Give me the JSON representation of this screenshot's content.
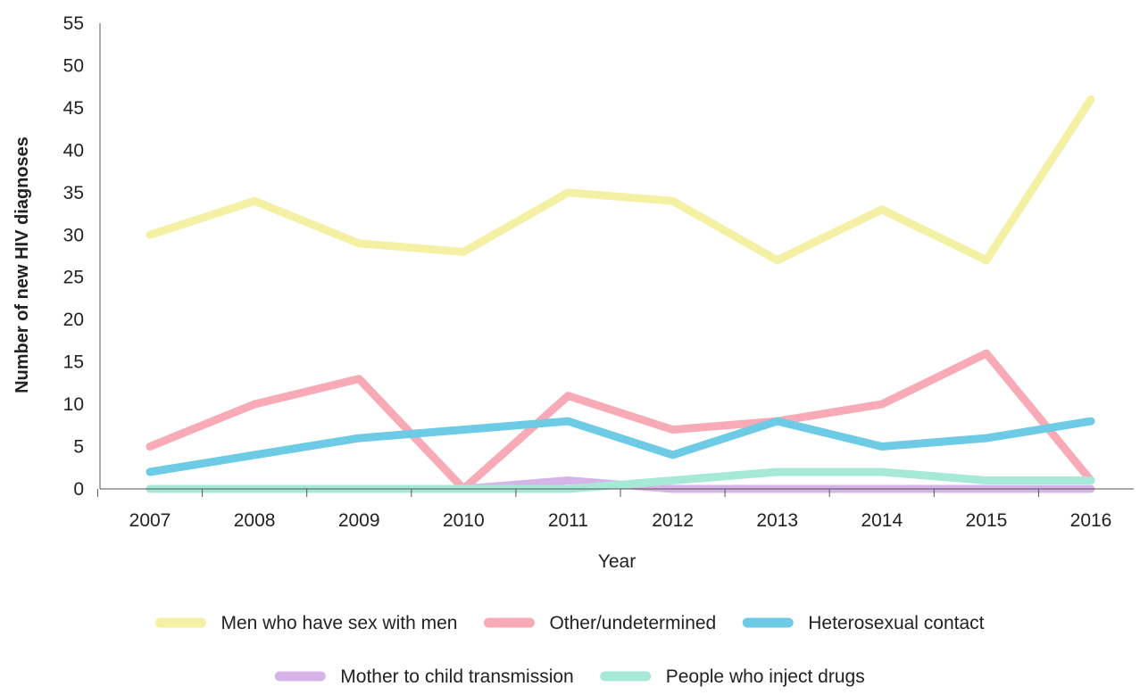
{
  "chart_data": {
    "type": "line",
    "xlabel": "Year",
    "ylabel": "Number of new HIV diagnoses",
    "ylim": [
      0,
      55
    ],
    "yticks": [
      0,
      5,
      10,
      15,
      20,
      25,
      30,
      35,
      40,
      45,
      50,
      55
    ],
    "x": [
      "2007",
      "2008",
      "2009",
      "2010",
      "2011",
      "2012",
      "2013",
      "2014",
      "2015",
      "2016"
    ],
    "grid": false,
    "legend_position": "bottom",
    "series": [
      {
        "name": "Men who have sex with men",
        "color": "#f4f0a4",
        "values": [
          30,
          34,
          29,
          28,
          35,
          34,
          27,
          33,
          27,
          46
        ]
      },
      {
        "name": "Other/undetermined",
        "color": "#f9aab7",
        "values": [
          5,
          10,
          13,
          0,
          11,
          7,
          8,
          10,
          16,
          1
        ]
      },
      {
        "name": "Heterosexual contact",
        "color": "#6dcbe6",
        "values": [
          2,
          4,
          6,
          7,
          8,
          4,
          8,
          5,
          6,
          8
        ]
      },
      {
        "name": "Mother to child transmission",
        "color": "#d7b4e8",
        "values": [
          0,
          0,
          0,
          0,
          1,
          0,
          0,
          0,
          0,
          0
        ]
      },
      {
        "name": "People who inject drugs",
        "color": "#a6e9d6",
        "values": [
          0,
          0,
          0,
          0,
          0,
          1,
          2,
          2,
          1,
          1
        ]
      }
    ]
  }
}
